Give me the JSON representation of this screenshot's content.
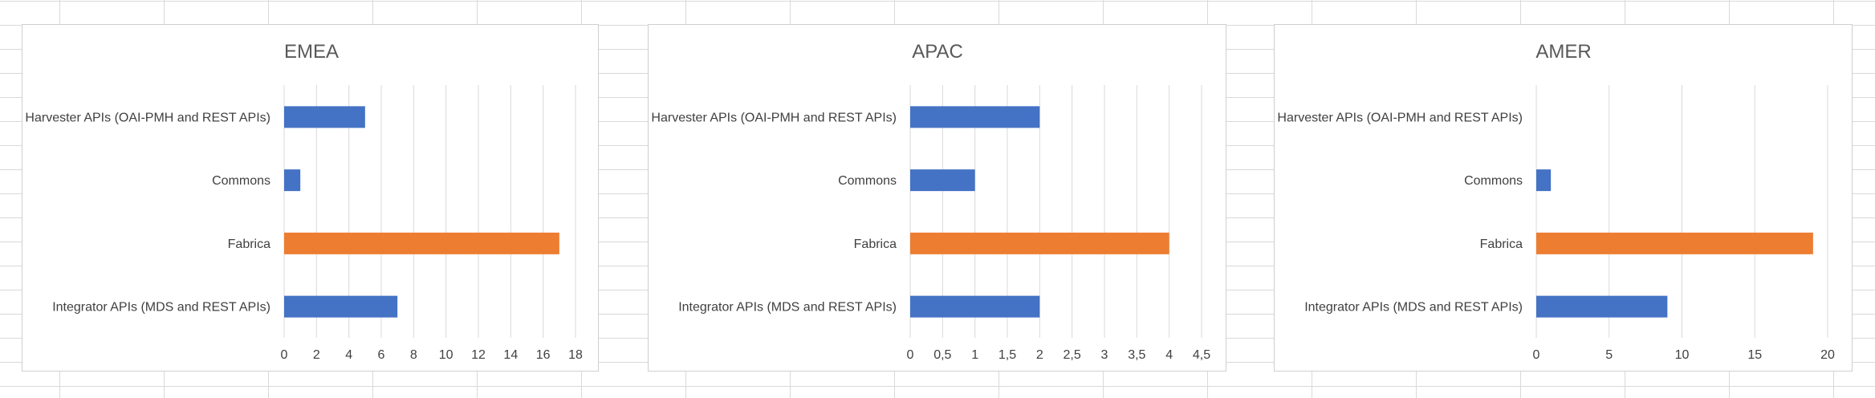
{
  "chart_data": [
    {
      "type": "bar",
      "orientation": "horizontal",
      "title": "EMEA",
      "categories": [
        "Harvester APIs (OAI-PMH and REST APIs)",
        "Commons",
        "Fabrica",
        "Integrator APIs (MDS and REST APIs)"
      ],
      "values": [
        5,
        1,
        17,
        7
      ],
      "highlight_index": 2,
      "xlim": [
        0,
        18
      ],
      "xticks": [
        0,
        2,
        4,
        6,
        8,
        10,
        12,
        14,
        16,
        18
      ],
      "xtick_labels": [
        "0",
        "2",
        "4",
        "6",
        "8",
        "10",
        "12",
        "14",
        "16",
        "18"
      ],
      "grid": true,
      "legend": "none"
    },
    {
      "type": "bar",
      "orientation": "horizontal",
      "title": "APAC",
      "categories": [
        "Harvester APIs (OAI-PMH and REST APIs)",
        "Commons",
        "Fabrica",
        "Integrator APIs (MDS and REST APIs)"
      ],
      "values": [
        2,
        1,
        4,
        2
      ],
      "highlight_index": 2,
      "xlim": [
        0,
        4.5
      ],
      "xticks": [
        0,
        0.5,
        1,
        1.5,
        2,
        2.5,
        3,
        3.5,
        4,
        4.5
      ],
      "xtick_labels": [
        "0",
        "0,5",
        "1",
        "1,5",
        "2",
        "2,5",
        "3",
        "3,5",
        "4",
        "4,5"
      ],
      "grid": true,
      "legend": "none"
    },
    {
      "type": "bar",
      "orientation": "horizontal",
      "title": "AMER",
      "categories": [
        "Harvester APIs (OAI-PMH and REST APIs)",
        "Commons",
        "Fabrica",
        "Integrator APIs (MDS and REST APIs)"
      ],
      "values": [
        0,
        1,
        19,
        9
      ],
      "highlight_index": 2,
      "xlim": [
        0,
        20
      ],
      "xticks": [
        0,
        5,
        10,
        15,
        20
      ],
      "xtick_labels": [
        "0",
        "5",
        "10",
        "15",
        "20"
      ],
      "grid": true,
      "legend": "none"
    }
  ],
  "colors": {
    "bar": "#4472c4",
    "highlight": "#ed7d31",
    "grid": "#d9d9d9",
    "text": "#404040",
    "title": "#595959"
  }
}
